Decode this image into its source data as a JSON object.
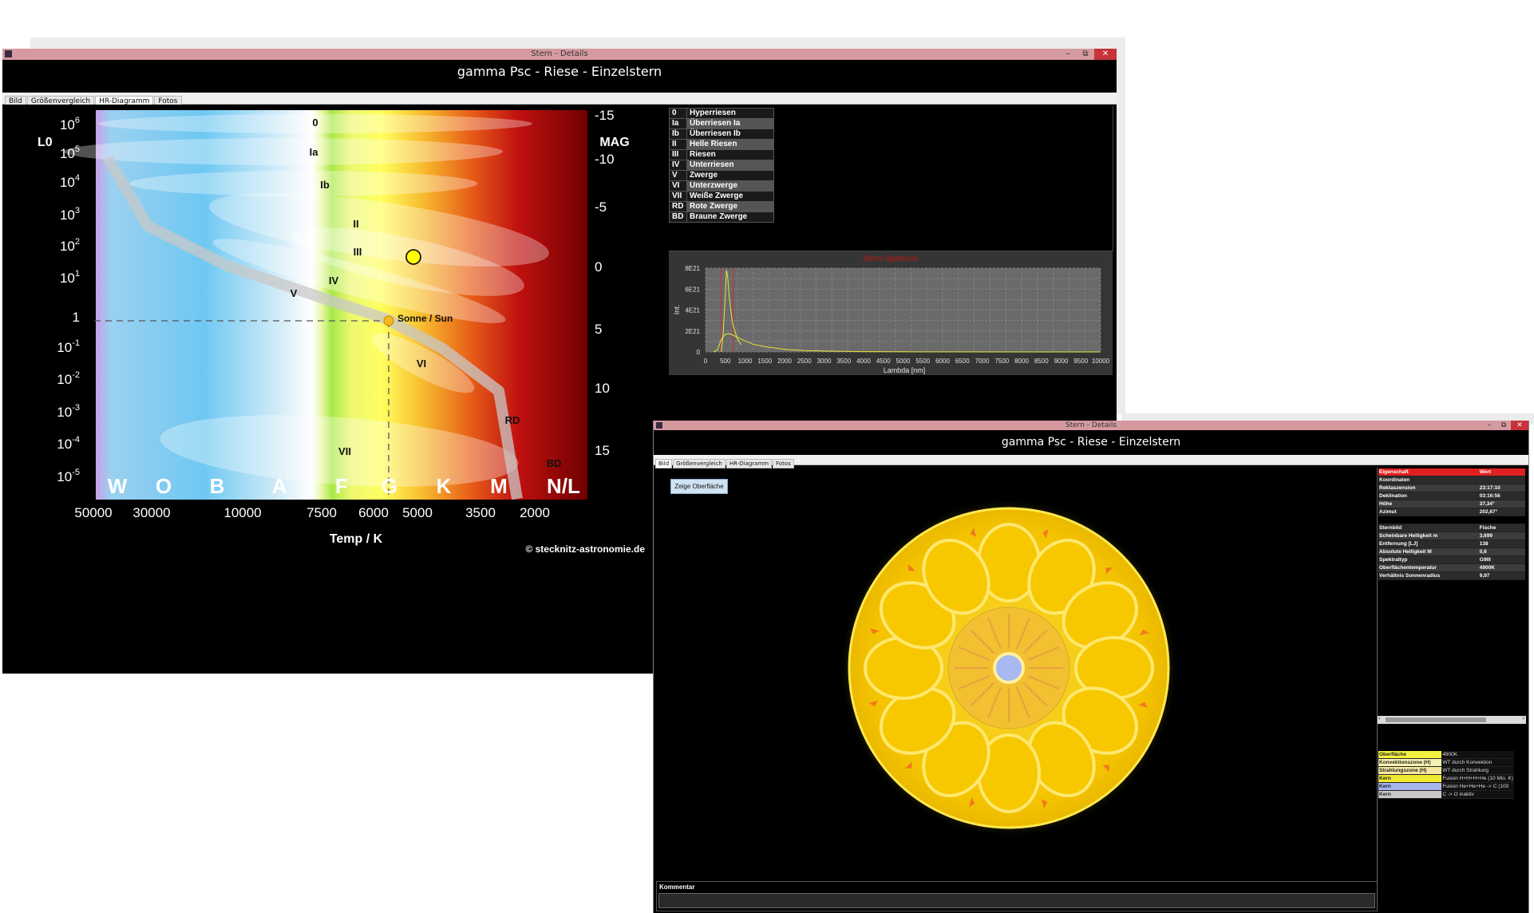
{
  "window1": {
    "title": "Stern - Details",
    "header": "gamma Psc - Riese - Einzelstern",
    "tabs": [
      "Bild",
      "Größenvergleich",
      "HR-Diagramm",
      "Fotos"
    ],
    "active_tab": "HR-Diagramm",
    "controls": {
      "min": "–",
      "max": "⧉",
      "close": "✕"
    }
  },
  "hr_diagram": {
    "left_axis_title": "L0",
    "right_axis_title": "MAG",
    "x_axis_title": "Temp / K",
    "copyright": "© stecknitz-astronomie.de",
    "lum_ticks": [
      {
        "base": "10",
        "exp": "6"
      },
      {
        "base": "10",
        "exp": "5"
      },
      {
        "base": "10",
        "exp": "4"
      },
      {
        "base": "10",
        "exp": "3"
      },
      {
        "base": "10",
        "exp": "2"
      },
      {
        "base": "10",
        "exp": "1"
      },
      {
        "base": "1",
        "exp": ""
      },
      {
        "base": "10",
        "exp": "-1"
      },
      {
        "base": "10",
        "exp": "-2"
      },
      {
        "base": "10",
        "exp": "-3"
      },
      {
        "base": "10",
        "exp": "-4"
      },
      {
        "base": "10",
        "exp": "-5"
      }
    ],
    "mag_ticks": [
      "-15",
      "-10",
      "-5",
      "0",
      "5",
      "10",
      "15"
    ],
    "temp_ticks": [
      "50000",
      "30000",
      "10000",
      "7500",
      "6000",
      "5000",
      "3500",
      "2000"
    ],
    "spectral_classes": [
      "W",
      "O",
      "B",
      "A",
      "F",
      "G",
      "K",
      "M",
      "N/L"
    ],
    "class_labels": [
      "0",
      "Ia",
      "Ib",
      "II",
      "III",
      "IV",
      "V",
      "VI",
      "VII",
      "RD",
      "BD"
    ],
    "sun_label": "Sonne / Sun"
  },
  "legend": [
    {
      "key": "0",
      "value": "Hyperriesen"
    },
    {
      "key": "Ia",
      "value": "Überriesen Ia"
    },
    {
      "key": "Ib",
      "value": "Überriesen Ib"
    },
    {
      "key": "II",
      "value": "Helle Riesen"
    },
    {
      "key": "III",
      "value": "Riesen"
    },
    {
      "key": "IV",
      "value": "Unterriesen"
    },
    {
      "key": "V",
      "value": "Zwerge"
    },
    {
      "key": "VI",
      "value": "Unterzwerge"
    },
    {
      "key": "VII",
      "value": "Weiße Zwerge"
    },
    {
      "key": "RD",
      "value": "Rote Zwerge"
    },
    {
      "key": "BD",
      "value": "Braune Zwerge"
    }
  ],
  "chart_data": {
    "type": "line",
    "title": "Stern-Spektrum",
    "xlabel": "Lambda [nm]",
    "ylabel": "Int.",
    "xlim": [
      0,
      10000
    ],
    "ylim": [
      0,
      8e+21
    ],
    "x_ticks": [
      "0",
      "500",
      "1000",
      "1500",
      "2000",
      "2500",
      "3000",
      "3500",
      "4000",
      "4500",
      "5000",
      "5500",
      "6000",
      "6500",
      "7000",
      "7500",
      "8000",
      "8500",
      "9000",
      "9500",
      "10000"
    ],
    "y_ticks": [
      "0",
      "2E21",
      "4E21",
      "6E21",
      "8E21"
    ],
    "grid": true,
    "colors": {
      "series": "#e8e83a",
      "background": "#6a6a6a",
      "grid": "#8c8c8c",
      "markers": "#c0303a"
    },
    "series": [
      {
        "x": [
          200,
          300,
          400,
          500,
          600,
          700,
          800,
          1000,
          1200,
          1500,
          2000,
          2500,
          3000,
          4000,
          5000,
          6000,
          8000,
          10000
        ],
        "values": [
          0.0,
          2e+20,
          1.2e+21,
          1.7e+21,
          1.75e+21,
          1.6e+21,
          1.4e+21,
          1.05e+21,
          7.5e+20,
          5e+20,
          2.5e+20,
          1.4e+20,
          8e+19,
          3e+19,
          1.5e+19,
          8e+18,
          3e+18,
          0.0
        ]
      },
      {
        "x": [
          400,
          450,
          500,
          530,
          560,
          600,
          650,
          700,
          800,
          900
        ],
        "values": [
          0.0,
          2e+21,
          5.5e+21,
          7.8e+21,
          7.2e+21,
          5.2e+21,
          3.6e+21,
          2.5e+21,
          1.3e+21,
          7e+20
        ]
      }
    ]
  },
  "window2": {
    "title": "Stern - Details",
    "header": "gamma Psc - Riese - Einzelstern",
    "tabs": [
      "Bild",
      "Größenvergleich",
      "HR-Diagramm",
      "Fotos"
    ],
    "active_tab": "Bild",
    "controls": {
      "min": "–",
      "max": "⧉",
      "close": "✕"
    },
    "show_surface_button": "Zeige Oberfläche",
    "comment_label": "Kommentar",
    "properties_header": [
      "Eigenschaft",
      "Wert"
    ],
    "properties": [
      {
        "name": "Koordinaten",
        "value": ""
      },
      {
        "name": "Rektaszension",
        "value": "23:17:10"
      },
      {
        "name": "Deklination",
        "value": "03:16:56"
      },
      {
        "name": "Höhe",
        "value": "37,34°"
      },
      {
        "name": "Azimut",
        "value": "202,67°"
      },
      {
        "name": "",
        "value": ""
      },
      {
        "name": "Sternbild",
        "value": "Fische"
      },
      {
        "name": "Scheinbare Helligkeit m",
        "value": "3,699"
      },
      {
        "name": "Entfernung [LJ]",
        "value": "138"
      },
      {
        "name": "Absolute Helligkeit M",
        "value": "0,6"
      },
      {
        "name": "Spektraltyp",
        "value": "G9III"
      },
      {
        "name": "Oberflächentemperatur",
        "value": "4900K"
      },
      {
        "name": "Verhältnis Sonnenradius",
        "value": "9,97"
      }
    ],
    "layers": [
      {
        "name": "Oberfläche",
        "value": "4900K",
        "color": "#f4f040"
      },
      {
        "name": "Konvektionszone (H)",
        "value": "WT durch Konvektion",
        "color": "#f8f2b0"
      },
      {
        "name": "Strahlungszone (H)",
        "value": "WT durch Strahlung",
        "color": "#f7e8a0"
      },
      {
        "name": "Kern",
        "value": "Fusion H+H+H+He (10 Mio. K)",
        "color": "#f0ea30"
      },
      {
        "name": "Kern",
        "value": "Fusion He+He+He -> C (100",
        "color": "#a8b4ee"
      },
      {
        "name": "Kern",
        "value": "C -> O inaktiv",
        "color": "#c8c8c8"
      }
    ]
  }
}
